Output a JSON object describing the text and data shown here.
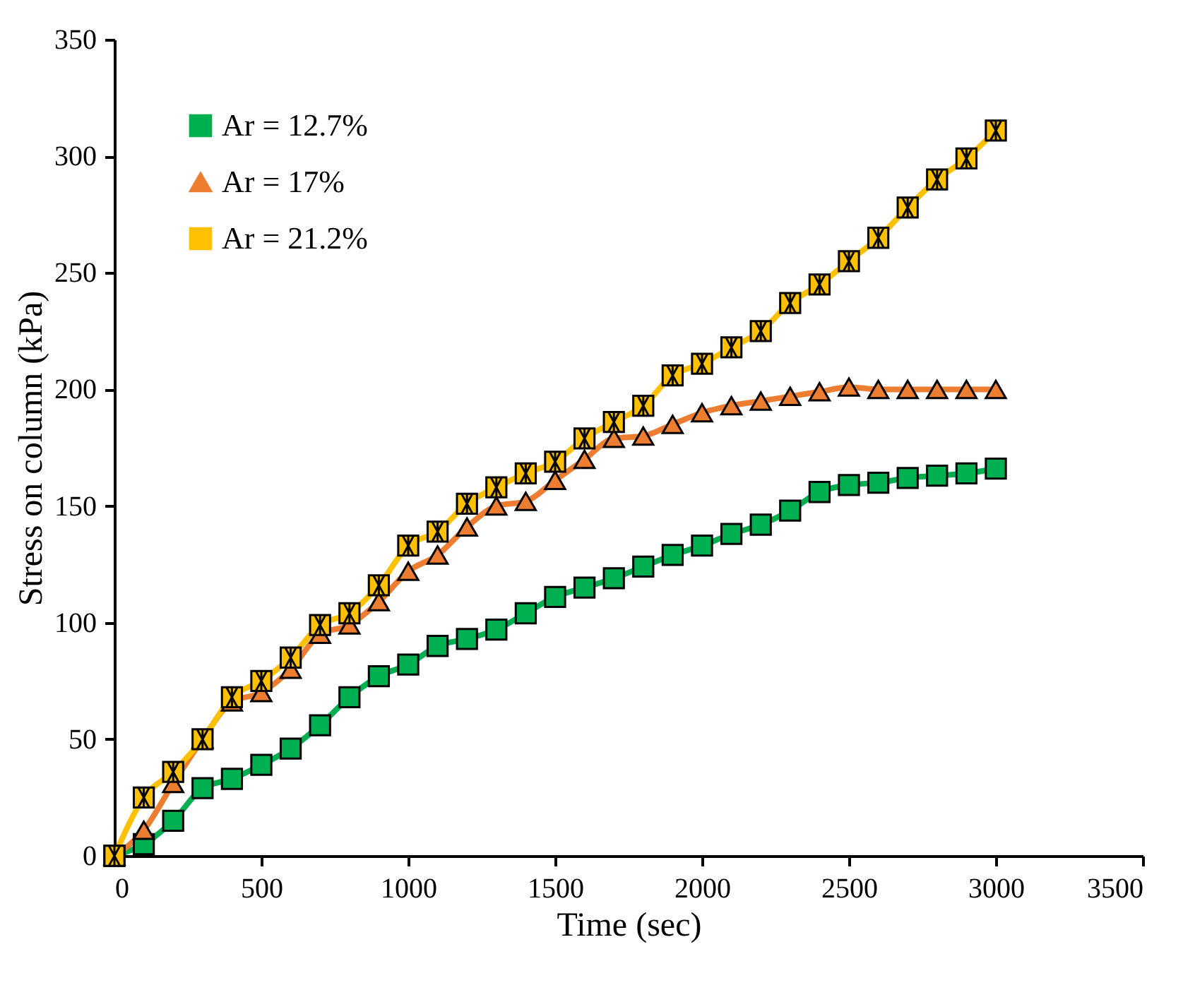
{
  "chart_data": {
    "type": "line",
    "xlabel": "Time (sec)",
    "ylabel": "Stress on column (kPa)",
    "x": [
      0,
      100,
      200,
      300,
      400,
      500,
      600,
      700,
      800,
      900,
      1000,
      1100,
      1200,
      1300,
      1400,
      1500,
      1600,
      1700,
      1800,
      1900,
      2000,
      2100,
      2200,
      2300,
      2400,
      2500,
      2600,
      2700,
      2800,
      2900,
      3000
    ],
    "series": [
      {
        "name": "Ar = 12.7%",
        "color": "#00b050",
        "marker": "square",
        "values": [
          0,
          5,
          15,
          29,
          33,
          39,
          46,
          56,
          68,
          77,
          82,
          90,
          93,
          97,
          104,
          111,
          115,
          119,
          124,
          129,
          133,
          138,
          142,
          148,
          156,
          159,
          160,
          162,
          163,
          164,
          166
        ]
      },
      {
        "name": "Ar = 17%",
        "color": "#ed7d31",
        "marker": "triangle",
        "values": [
          0,
          11,
          31,
          50,
          66,
          70,
          80,
          95,
          99,
          109,
          122,
          129,
          141,
          150,
          152,
          161,
          170,
          179,
          180,
          185,
          190,
          193,
          195,
          197,
          199,
          201,
          200,
          200,
          200,
          200,
          200
        ]
      },
      {
        "name": "Ar = 21.2%",
        "color": "#ffc000",
        "marker": "cross",
        "values": [
          0,
          25,
          36,
          50,
          68,
          75,
          85,
          99,
          104,
          116,
          133,
          139,
          151,
          158,
          164,
          169,
          179,
          186,
          193,
          206,
          211,
          218,
          225,
          237,
          245,
          255,
          265,
          278,
          290,
          299,
          311
        ]
      }
    ],
    "xlim": [
      0,
      3500
    ],
    "xticks": [
      0,
      500,
      1000,
      1500,
      2000,
      2500,
      3000,
      3500
    ],
    "ylim": [
      0,
      350
    ],
    "yticks": [
      0,
      50,
      100,
      150,
      200,
      250,
      300,
      350
    ],
    "grid": false,
    "legend": "top left",
    "line_style": "solid"
  }
}
